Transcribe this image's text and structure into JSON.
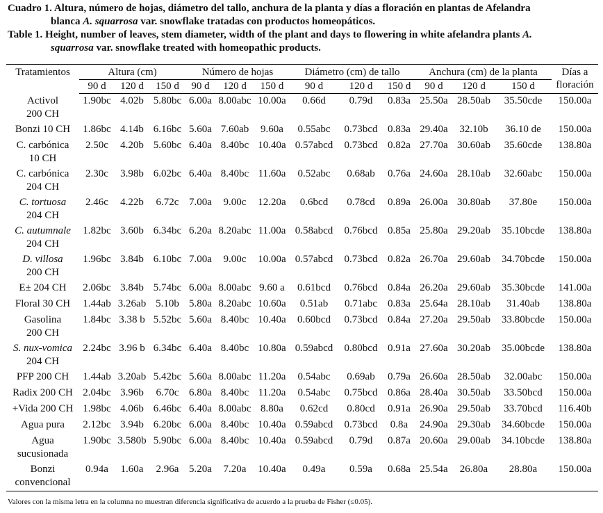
{
  "caption": {
    "es_label": "Cuadro 1.",
    "es_text_1": "Altura, número de hojas, diámetro del tallo, anchura de la planta y días a floración en plantas de Afelandra",
    "es_text_2a": "blanca ",
    "es_text_2b": "A. squarrosa",
    "es_text_2c": " var. snowflake tratadas con productos homeopáticos.",
    "en_label": "Table 1.",
    "en_text_1a": "Height, number of leaves, stem diameter, width of the plant and days to flowering in white afelandra plants ",
    "en_text_1b": "A.",
    "en_text_2a": "squarrosa",
    "en_text_2b": " var. snowflake treated with homeopathic products."
  },
  "header": {
    "treatments": "Tratamientos",
    "groups": [
      "Altura (cm)",
      "Número de hojas",
      "Diámetro (cm) de tallo",
      "Anchura (cm) de la planta"
    ],
    "days_line1": "Días a",
    "days_line2": "floración",
    "subcols": [
      "90 d",
      "120 d",
      "150 d",
      "90 d",
      "120 d",
      "150 d",
      "90 d",
      "120 d",
      "150 d",
      "90 d",
      "120 d",
      "150 d"
    ]
  },
  "rows": [
    {
      "name": [
        "Activol",
        "200 CH"
      ],
      "italic": false,
      "values": [
        "1.90bc",
        "4.02b",
        "5.80bc",
        "6.00a",
        "8.00abc",
        "10.00a",
        "0.66d",
        "0.79d",
        "0.83a",
        "25.50a",
        "28.50ab",
        "35.50cde",
        "150.00a"
      ]
    },
    {
      "name": [
        "Bonzi 10 CH"
      ],
      "italic": false,
      "values": [
        "1.86bc",
        "4.14b",
        "6.16bc",
        "5.60a",
        "7.60ab",
        "9.60a",
        "0.55abc",
        "0.73bcd",
        "0.83a",
        "29.40a",
        "32.10b",
        "36.10 de",
        "150.00a"
      ]
    },
    {
      "name": [
        "C. carbónica",
        "10 CH"
      ],
      "italic": false,
      "values": [
        "2.50c",
        "4.20b",
        "5.60bc",
        "6.40a",
        "8.40bc",
        "10.40a",
        "0.57abcd",
        "0.73bcd",
        "0.82a",
        "27.70a",
        "30.60ab",
        "35.60cde",
        "138.80a"
      ]
    },
    {
      "name": [
        "C. carbónica",
        "204 CH"
      ],
      "italic": false,
      "values": [
        "2.30c",
        "3.98b",
        "6.02bc",
        "6.40a",
        "8.40bc",
        "11.60a",
        "0.52abc",
        "0.68ab",
        "0.76a",
        "24.60a",
        "28.10ab",
        "32.60abc",
        "150.00a"
      ]
    },
    {
      "name": [
        "C. tortuosa",
        "204 CH"
      ],
      "italic": true,
      "values": [
        "2.46c",
        "4.22b",
        "6.72c",
        "7.00a",
        "9.00c",
        "12.20a",
        "0.6bcd",
        "0.78cd",
        "0.89a",
        "26.00a",
        "30.80ab",
        "37.80e",
        "150.00a"
      ]
    },
    {
      "name": [
        "C. autumnale",
        "204 CH"
      ],
      "italic": true,
      "values": [
        "1.82bc",
        "3.60b",
        "6.34bc",
        "6.20a",
        "8.20abc",
        "11.00a",
        "0.58abcd",
        "0.76bcd",
        "0.85a",
        "25.80a",
        "29.20ab",
        "35.10bcde",
        "138.80a"
      ]
    },
    {
      "name": [
        "D. villosa",
        "200 CH"
      ],
      "italic": true,
      "values": [
        "1.96bc",
        "3.84b",
        "6.10bc",
        "7.00a",
        "9.00c",
        "10.00a",
        "0.57abcd",
        "0.73bcd",
        "0.82a",
        "26.70a",
        "29.60ab",
        "34.70bcde",
        "150.00a"
      ]
    },
    {
      "name": [
        "E± 204 CH"
      ],
      "italic": false,
      "values": [
        "2.06bc",
        "3.84b",
        "5.74bc",
        "6.00a",
        "8.00abc",
        "9.60 a",
        "0.61bcd",
        "0.76bcd",
        "0.84a",
        "26.20a",
        "29.60ab",
        "35.30bcde",
        "141.00a"
      ]
    },
    {
      "name": [
        "Floral 30 CH"
      ],
      "italic": false,
      "values": [
        "1.44ab",
        "3.26ab",
        "5.10b",
        "5.80a",
        "8.20abc",
        "10.60a",
        "0.51ab",
        "0.71abc",
        "0.83a",
        "25.64a",
        "28.10ab",
        "31.40ab",
        "138.80a"
      ]
    },
    {
      "name": [
        "Gasolina",
        "200 CH"
      ],
      "italic": false,
      "values": [
        "1.84bc",
        "3.38 b",
        "5.52bc",
        "5.60a",
        "8.40bc",
        "10.40a",
        "0.60bcd",
        "0.73bcd",
        "0.84a",
        "27.20a",
        "29.50ab",
        "33.80bcde",
        "150.00a"
      ]
    },
    {
      "name": [
        "S. nux-vomica",
        "204 CH"
      ],
      "italic": true,
      "values": [
        "2.24bc",
        "3.96 b",
        "6.34bc",
        "6.40a",
        "8.40bc",
        "10.80a",
        "0.59abcd",
        "0.80bcd",
        "0.91a",
        "27.60a",
        "30.20ab",
        "35.00bcde",
        "138.80a"
      ]
    },
    {
      "name": [
        "PFP 200 CH"
      ],
      "italic": false,
      "values": [
        "1.44ab",
        "3.20ab",
        "5.42bc",
        "5.60a",
        "8.00abc",
        "11.20a",
        "0.54abc",
        "0.69ab",
        "0.79a",
        "26.60a",
        "28.50ab",
        "32.00abc",
        "150.00a"
      ]
    },
    {
      "name": [
        "Radix 200 CH"
      ],
      "italic": false,
      "values": [
        "2.04bc",
        "3.96b",
        "6.70c",
        "6.80a",
        "8.40bc",
        "11.20a",
        "0.54abc",
        "0.75bcd",
        "0.86a",
        "28.40a",
        "30.50ab",
        "33.50bcd",
        "150.00a"
      ]
    },
    {
      "name": [
        "+Vida 200 CH"
      ],
      "italic": false,
      "values": [
        "1.98bc",
        "4.06b",
        "6.46bc",
        "6.40a",
        "8.00abc",
        "8.80a",
        "0.62cd",
        "0.80cd",
        "0.91a",
        "26.90a",
        "29.50ab",
        "33.70bcd",
        "116.40b"
      ]
    },
    {
      "name": [
        "Agua pura"
      ],
      "italic": false,
      "values": [
        "2.12bc",
        "3.94b",
        "6.20bc",
        "6.00a",
        "8.40bc",
        "10.40a",
        "0.59abcd",
        "0.73bcd",
        "0.8a",
        "24.90a",
        "29.30ab",
        "34.60bcde",
        "150.00a"
      ]
    },
    {
      "name": [
        "Agua",
        "sucusionada"
      ],
      "italic": false,
      "values": [
        "1.90bc",
        "3.580b",
        "5.90bc",
        "6.00a",
        "8.40bc",
        "10.40a",
        "0.59abcd",
        "0.79d",
        "0.87a",
        "20.60a",
        "29.00ab",
        "34.10bcde",
        "138.80a"
      ]
    },
    {
      "name": [
        "Bonzi",
        "convencional"
      ],
      "italic": false,
      "values": [
        "0.94a",
        "1.60a",
        "2.96a",
        "5.20a",
        "7.20a",
        "10.40a",
        "0.49a",
        "0.59a",
        "0.68a",
        "25.54a",
        "26.80a",
        "28.80a",
        "150.00a"
      ]
    }
  ],
  "footnote": "Valores con la misma letra en la columna no muestran diferencia significativa de acuerdo a la prueba de Fisher (≤0.05)."
}
